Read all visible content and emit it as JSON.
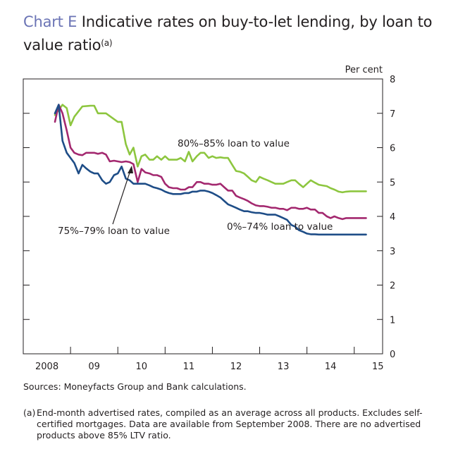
{
  "title": {
    "label": "Chart E",
    "text": "Indicative rates on buy-to-let lending, by loan to value ratio",
    "footnote_mark": "(a)"
  },
  "sources": "Sources: Moneyfacts Group and Bank calculations.",
  "footnote": {
    "mark": "(a)",
    "text": "End-month advertised rates, compiled as an average across all products. Excludes self-certified mortgages. Data are available from September 2008. There are no advertised products above 85% LTV ratio."
  },
  "colors": {
    "ltv_80_85": "#8dc63f",
    "ltv_75_79": "#a3286f",
    "ltv_0_74": "#1e4d87",
    "axis": "#231f20"
  },
  "chart_data": {
    "type": "line",
    "ylabel": "Per cent",
    "ylim": [
      0,
      8
    ],
    "yticks": [
      0,
      1,
      2,
      3,
      4,
      5,
      6,
      7,
      8
    ],
    "xlim": [
      2008.0,
      2015.6
    ],
    "xtick_labels": [
      {
        "label": "2008",
        "x": 2008.5
      },
      {
        "label": "09",
        "x": 2009.5
      },
      {
        "label": "10",
        "x": 2010.5
      },
      {
        "label": "11",
        "x": 2011.5
      },
      {
        "label": "12",
        "x": 2012.5
      },
      {
        "label": "13",
        "x": 2013.5
      },
      {
        "label": "14",
        "x": 2014.5
      },
      {
        "label": "15",
        "x": 2015.5
      }
    ],
    "annotations": [
      {
        "text": "80%–85% loan to value",
        "series": "80%–85%"
      },
      {
        "text": "75%–79% loan to value",
        "series": "75%–79%"
      },
      {
        "text": "0%–74% loan to value",
        "series": "0%–74%"
      }
    ],
    "series": [
      {
        "name": "80%–85% loan to value",
        "key": "ltv_80_85",
        "x": [
          2008.67,
          2008.83,
          2008.92,
          2009.0,
          2009.08,
          2009.25,
          2009.42,
          2009.5,
          2009.58,
          2009.75,
          2010.0,
          2010.08,
          2010.17,
          2010.25,
          2010.33,
          2010.42,
          2010.5,
          2010.58,
          2010.67,
          2010.75,
          2010.83,
          2010.92,
          2011.0,
          2011.08,
          2011.17,
          2011.25,
          2011.33,
          2011.42,
          2011.5,
          2011.58,
          2011.67,
          2011.75,
          2011.83,
          2011.92,
          2012.0,
          2012.08,
          2012.17,
          2012.25,
          2012.33,
          2012.42,
          2012.5,
          2012.58,
          2012.67,
          2012.75,
          2012.83,
          2012.92,
          2013.0,
          2013.08,
          2013.17,
          2013.25,
          2013.33,
          2013.42,
          2013.5,
          2013.58,
          2013.67,
          2013.75,
          2013.83,
          2013.92,
          2014.0,
          2014.08,
          2014.17,
          2014.25,
          2014.33,
          2014.42,
          2014.5,
          2014.58,
          2014.67,
          2014.75,
          2014.83,
          2014.92,
          2015.0,
          2015.08,
          2015.17,
          2015.25
        ],
        "y": [
          6.95,
          7.25,
          7.15,
          6.65,
          6.9,
          7.2,
          7.22,
          7.22,
          7.0,
          7.0,
          6.75,
          6.75,
          6.1,
          5.8,
          6.0,
          5.45,
          5.75,
          5.8,
          5.65,
          5.65,
          5.75,
          5.65,
          5.75,
          5.65,
          5.65,
          5.65,
          5.7,
          5.6,
          5.88,
          5.6,
          5.75,
          5.85,
          5.85,
          5.7,
          5.75,
          5.7,
          5.72,
          5.7,
          5.7,
          5.5,
          5.32,
          5.3,
          5.25,
          5.15,
          5.05,
          5.0,
          5.15,
          5.1,
          5.05,
          5.0,
          4.95,
          4.95,
          4.95,
          5.0,
          5.05,
          5.05,
          4.95,
          4.85,
          4.95,
          5.05,
          4.98,
          4.92,
          4.9,
          4.88,
          4.82,
          4.78,
          4.72,
          4.7,
          4.72,
          4.73,
          4.73,
          4.73,
          4.73,
          4.73
        ]
      },
      {
        "name": "75%–79% loan to value",
        "key": "ltv_75_79",
        "x": [
          2008.67,
          2008.75,
          2008.83,
          2008.92,
          2009.0,
          2009.08,
          2009.17,
          2009.25,
          2009.33,
          2009.42,
          2009.5,
          2009.58,
          2009.67,
          2009.75,
          2009.83,
          2009.92,
          2010.0,
          2010.08,
          2010.17,
          2010.25,
          2010.33,
          2010.42,
          2010.5,
          2010.58,
          2010.67,
          2010.75,
          2010.83,
          2010.92,
          2011.0,
          2011.08,
          2011.17,
          2011.25,
          2011.33,
          2011.42,
          2011.5,
          2011.58,
          2011.67,
          2011.75,
          2011.83,
          2011.92,
          2012.0,
          2012.08,
          2012.17,
          2012.25,
          2012.33,
          2012.42,
          2012.5,
          2012.58,
          2012.67,
          2012.75,
          2012.83,
          2012.92,
          2013.0,
          2013.08,
          2013.17,
          2013.25,
          2013.33,
          2013.42,
          2013.5,
          2013.58,
          2013.67,
          2013.75,
          2013.83,
          2013.92,
          2014.0,
          2014.08,
          2014.17,
          2014.25,
          2014.33,
          2014.42,
          2014.5,
          2014.58,
          2014.67,
          2014.75,
          2014.83,
          2014.92,
          2015.0,
          2015.08,
          2015.17,
          2015.25
        ],
        "y": [
          6.75,
          7.25,
          7.0,
          6.5,
          6.0,
          5.85,
          5.8,
          5.78,
          5.85,
          5.85,
          5.85,
          5.82,
          5.85,
          5.8,
          5.6,
          5.62,
          5.6,
          5.58,
          5.6,
          5.58,
          5.52,
          5.0,
          5.38,
          5.28,
          5.25,
          5.2,
          5.2,
          5.15,
          4.95,
          4.85,
          4.82,
          4.82,
          4.78,
          4.78,
          4.85,
          4.85,
          5.0,
          5.0,
          4.95,
          4.95,
          4.92,
          4.92,
          4.95,
          4.85,
          4.75,
          4.75,
          4.6,
          4.55,
          4.5,
          4.45,
          4.38,
          4.32,
          4.3,
          4.3,
          4.28,
          4.25,
          4.25,
          4.22,
          4.22,
          4.18,
          4.25,
          4.25,
          4.22,
          4.22,
          4.25,
          4.2,
          4.2,
          4.1,
          4.1,
          4.0,
          3.95,
          4.0,
          3.95,
          3.92,
          3.95,
          3.95,
          3.95,
          3.95,
          3.95,
          3.95
        ]
      },
      {
        "name": "0%–74% loan to value",
        "key": "ltv_0_74",
        "x": [
          2008.67,
          2008.75,
          2008.83,
          2008.92,
          2009.0,
          2009.08,
          2009.17,
          2009.25,
          2009.33,
          2009.42,
          2009.5,
          2009.58,
          2009.67,
          2009.75,
          2009.83,
          2009.92,
          2010.0,
          2010.08,
          2010.17,
          2010.25,
          2010.33,
          2010.42,
          2010.5,
          2010.58,
          2010.67,
          2010.75,
          2010.83,
          2010.92,
          2011.0,
          2011.08,
          2011.17,
          2011.25,
          2011.33,
          2011.42,
          2011.5,
          2011.58,
          2011.67,
          2011.75,
          2011.83,
          2011.92,
          2012.0,
          2012.08,
          2012.17,
          2012.25,
          2012.33,
          2012.42,
          2012.5,
          2012.58,
          2012.67,
          2012.75,
          2012.83,
          2012.92,
          2013.0,
          2013.08,
          2013.17,
          2013.25,
          2013.33,
          2013.42,
          2013.5,
          2013.58,
          2013.67,
          2013.75,
          2013.83,
          2013.92,
          2014.0,
          2014.08,
          2014.17,
          2014.25,
          2014.33,
          2014.42,
          2014.5,
          2014.58,
          2014.67,
          2014.75,
          2014.83,
          2014.92,
          2015.0,
          2015.08,
          2015.17,
          2015.25
        ],
        "y": [
          7.0,
          7.25,
          6.2,
          5.85,
          5.7,
          5.55,
          5.25,
          5.5,
          5.4,
          5.3,
          5.25,
          5.25,
          5.05,
          4.95,
          5.0,
          5.2,
          5.25,
          5.45,
          5.1,
          5.05,
          4.95,
          4.95,
          4.95,
          4.95,
          4.9,
          4.85,
          4.82,
          4.78,
          4.72,
          4.68,
          4.65,
          4.65,
          4.65,
          4.68,
          4.68,
          4.72,
          4.72,
          4.75,
          4.75,
          4.72,
          4.68,
          4.62,
          4.55,
          4.45,
          4.35,
          4.3,
          4.25,
          4.2,
          4.15,
          4.15,
          4.12,
          4.1,
          4.1,
          4.08,
          4.05,
          4.05,
          4.05,
          4.0,
          3.95,
          3.9,
          3.75,
          3.7,
          3.6,
          3.55,
          3.5,
          3.48,
          3.48,
          3.47,
          3.47,
          3.47,
          3.47,
          3.47,
          3.47,
          3.47,
          3.47,
          3.47,
          3.47,
          3.47,
          3.47,
          3.47
        ]
      }
    ]
  }
}
